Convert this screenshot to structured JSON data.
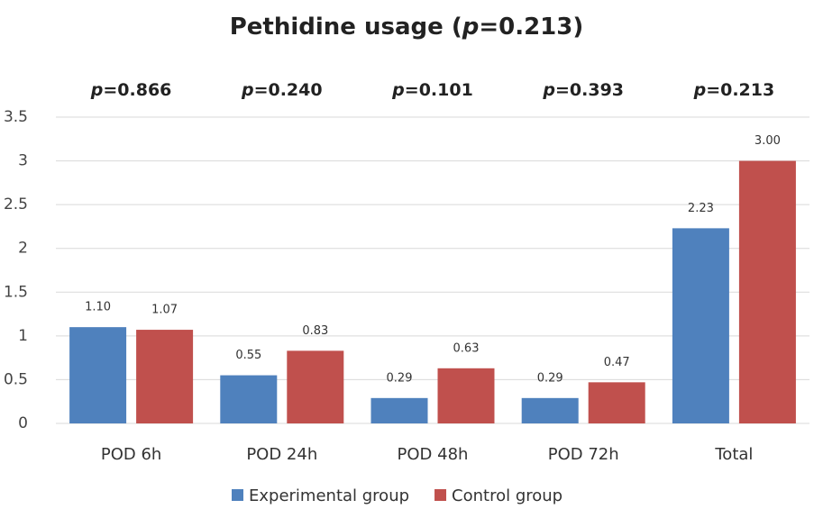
{
  "chart_data": {
    "type": "bar",
    "title": "Pethidine usage (p=0.213)",
    "annotations": [
      "p=0.866",
      "p=0.240",
      "p=0.101",
      "p=0.393",
      "p=0.213"
    ],
    "categories": [
      "POD 6h",
      "POD 24h",
      "POD 48h",
      "POD 72h",
      "Total"
    ],
    "series": [
      {
        "name": "Experimental group",
        "color": "#4f81bd",
        "values": [
          1.1,
          0.55,
          0.29,
          0.29,
          2.23
        ],
        "value_labels": [
          "1.10",
          "0.55",
          "0.29",
          "0.29",
          "2.23"
        ]
      },
      {
        "name": "Control group",
        "color": "#c0504d",
        "values": [
          1.07,
          0.83,
          0.63,
          0.47,
          3.0
        ],
        "value_labels": [
          "1.07",
          "0.83",
          "0.63",
          "0.47",
          "3.00"
        ]
      }
    ],
    "ylim": [
      0,
      3.5
    ],
    "yticks": [
      0,
      0.5,
      1,
      1.5,
      2,
      2.5,
      3,
      3.5
    ],
    "grid": true
  }
}
